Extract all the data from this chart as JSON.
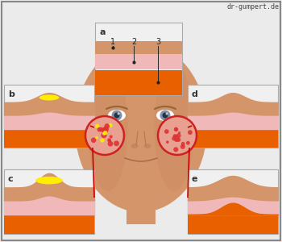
{
  "bg_color": "#ebebeb",
  "face_skin": "#d4956a",
  "face_shadow": "#c07850",
  "face_highlight": "#e8b080",
  "ear_color": "#c8855a",
  "panel_bg": "#f0f0f0",
  "panel_border": "#aaaaaa",
  "orange_layer": "#e86000",
  "pink_layer": "#f0b8b8",
  "skin_layer": "#c8845a",
  "skin_top_layer": "#d4956a",
  "yellow_fill": "#ffee00",
  "rash_bg": "#e8a090",
  "rash_color": "#cc2222",
  "rash_dot_red": "#dd3333",
  "rash_dot_yellow": "#ffee00",
  "arrow_color": "#cc0000",
  "title_text": "dr-gumpert.de",
  "label_a": "a",
  "label_b": "b",
  "label_c": "c",
  "label_d": "d",
  "label_e": "e",
  "layer_labels": [
    "1",
    "2",
    "3"
  ],
  "border_color": "#888888",
  "line_color": "#222222",
  "eye_white": "#ffffff",
  "eye_iris": "#8090a8",
  "eye_pupil": "#223344",
  "nose_color": "#b87850",
  "mouth_color": "#a06848",
  "brow_color": "#906838"
}
